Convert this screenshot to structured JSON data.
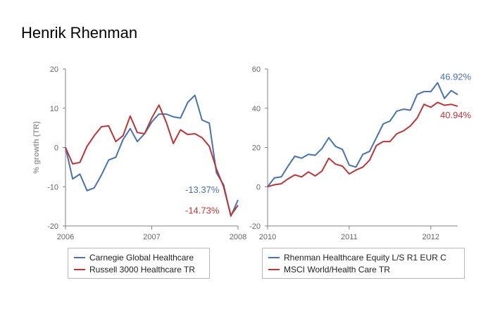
{
  "page": {
    "title": "Henrik Rhenman"
  },
  "colors": {
    "blue": "#4a72a8",
    "red": "#b5373a",
    "axis": "#808080",
    "tick": "#666666"
  },
  "chart_data": [
    {
      "type": "line",
      "ylabel": "% growth (TR)",
      "xlabel": "",
      "xlim": [
        2006,
        2008
      ],
      "ylim": [
        -20,
        20
      ],
      "xticks": [
        2006,
        2007,
        2008
      ],
      "yticks": [
        -20,
        -10,
        0,
        10,
        20
      ],
      "grid": false,
      "legend": "bottom",
      "series": [
        {
          "name": "Carnegie Global Healthcare",
          "color": "#4a72a8",
          "end_label": "-13.37%",
          "x": [
            2006.0,
            2006.083,
            2006.167,
            2006.25,
            2006.333,
            2006.417,
            2006.5,
            2006.583,
            2006.667,
            2006.75,
            2006.833,
            2006.917,
            2007.0,
            2007.083,
            2007.167,
            2007.25,
            2007.333,
            2007.417,
            2007.5,
            2007.583,
            2007.667,
            2007.75,
            2007.833,
            2007.917,
            2008.0
          ],
          "y": [
            0,
            -8,
            -6.8,
            -11,
            -10.3,
            -7,
            -3.2,
            -2.5,
            2,
            4.8,
            1.5,
            3.5,
            6.5,
            8.5,
            8.5,
            7.8,
            7.5,
            11.5,
            13.3,
            7,
            6.2,
            -6.5,
            -9.5,
            -17.5,
            -13.37
          ]
        },
        {
          "name": "Russell 3000 Healthcare TR",
          "color": "#b5373a",
          "end_label": "-14.73%",
          "x": [
            2006.0,
            2006.083,
            2006.167,
            2006.25,
            2006.333,
            2006.417,
            2006.5,
            2006.583,
            2006.667,
            2006.75,
            2006.833,
            2006.917,
            2007.0,
            2007.083,
            2007.167,
            2007.25,
            2007.333,
            2007.417,
            2007.5,
            2007.583,
            2007.667,
            2007.75,
            2007.833,
            2007.917,
            2008.0
          ],
          "y": [
            0,
            -4.2,
            -3.8,
            0.3,
            3,
            5.3,
            5.5,
            1.5,
            3,
            8,
            3.8,
            3.5,
            7.5,
            10.8,
            6.5,
            1,
            4.5,
            3.3,
            3.5,
            2.5,
            0.3,
            -5.5,
            -10,
            -17.3,
            -14.73
          ]
        }
      ]
    },
    {
      "type": "line",
      "ylabel": "",
      "xlabel": "",
      "xlim": [
        2010,
        2012.33
      ],
      "ylim": [
        -20,
        60
      ],
      "xticks": [
        2010,
        2011,
        2012
      ],
      "yticks": [
        -20,
        0,
        20,
        40,
        60
      ],
      "grid": false,
      "legend": "bottom",
      "series": [
        {
          "name": "Rhenman Healthcare Equity L/S R1 EUR C",
          "color": "#4a72a8",
          "end_label": "46.92%",
          "x": [
            2010.0,
            2010.083,
            2010.167,
            2010.25,
            2010.333,
            2010.417,
            2010.5,
            2010.583,
            2010.667,
            2010.75,
            2010.833,
            2010.917,
            2011.0,
            2011.083,
            2011.167,
            2011.25,
            2011.333,
            2011.417,
            2011.5,
            2011.583,
            2011.667,
            2011.75,
            2011.833,
            2011.917,
            2012.0,
            2012.083,
            2012.167,
            2012.25,
            2012.33
          ],
          "y": [
            0,
            4.5,
            5,
            10.5,
            15.5,
            14.5,
            16.5,
            16,
            19.5,
            25,
            20.5,
            19,
            11,
            10,
            16.5,
            18,
            25,
            32,
            33.5,
            38.5,
            39.5,
            39,
            47,
            48.5,
            48.5,
            53,
            45,
            49,
            46.92
          ]
        },
        {
          "name": "MSCI World/Health Care TR",
          "color": "#b5373a",
          "end_label": "40.94%",
          "x": [
            2010.0,
            2010.083,
            2010.167,
            2010.25,
            2010.333,
            2010.417,
            2010.5,
            2010.583,
            2010.667,
            2010.75,
            2010.833,
            2010.917,
            2011.0,
            2011.083,
            2011.167,
            2011.25,
            2011.333,
            2011.417,
            2011.5,
            2011.583,
            2011.667,
            2011.75,
            2011.833,
            2011.917,
            2012.0,
            2012.083,
            2012.167,
            2012.25,
            2012.33
          ],
          "y": [
            0,
            1,
            1.5,
            4,
            6,
            5,
            7.5,
            5.5,
            8,
            14.5,
            11.5,
            10.5,
            6.5,
            8.5,
            10,
            13.5,
            21,
            23,
            23,
            27,
            28.5,
            31,
            35,
            42,
            40.5,
            43,
            41.5,
            42,
            40.94
          ]
        }
      ]
    }
  ]
}
